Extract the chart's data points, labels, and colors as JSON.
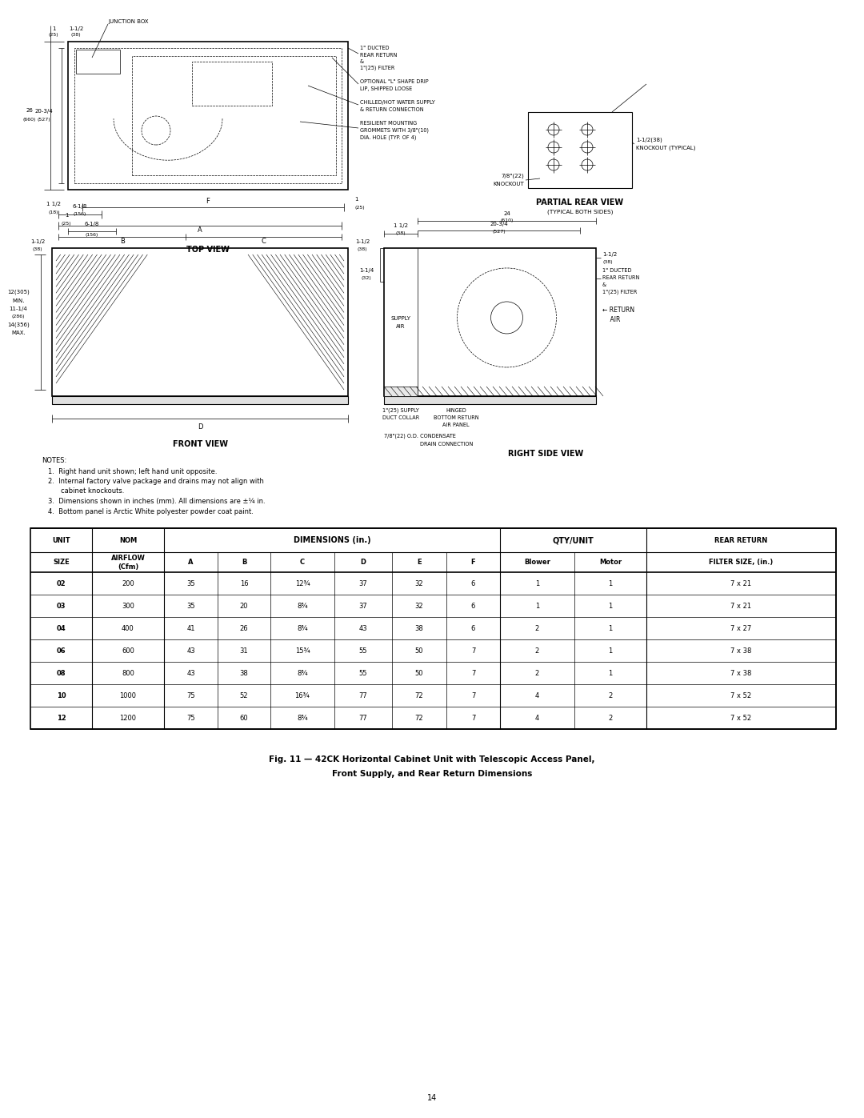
{
  "bg_color": "#ffffff",
  "page_width": 10.8,
  "page_height": 13.97,
  "table_data": {
    "unit_sizes": [
      "02",
      "03",
      "04",
      "06",
      "08",
      "10",
      "12"
    ],
    "nom_airflow": [
      200,
      300,
      400,
      600,
      800,
      1000,
      1200
    ],
    "dim_A": [
      35,
      35,
      41,
      43,
      43,
      75,
      75
    ],
    "dim_B": [
      16,
      20,
      26,
      31,
      38,
      52,
      60
    ],
    "dim_C": [
      "12¾",
      "8¾",
      "8¾",
      "15¾",
      "8¾",
      "16¾",
      "8¾"
    ],
    "dim_D": [
      37,
      37,
      43,
      55,
      55,
      77,
      77
    ],
    "dim_E": [
      32,
      32,
      38,
      50,
      50,
      72,
      72
    ],
    "dim_F": [
      6,
      6,
      6,
      7,
      7,
      7,
      7
    ],
    "blower": [
      1,
      1,
      2,
      2,
      2,
      4,
      4
    ],
    "motor": [
      1,
      1,
      1,
      1,
      1,
      2,
      2
    ],
    "filter_size": [
      "7 x 21",
      "7 x 21",
      "7 x 27",
      "7 x 38",
      "7 x 38",
      "7 x 52",
      "7 x 52"
    ]
  },
  "notes_lines": [
    "NOTES:",
    "1.  Right hand unit shown; left hand unit opposite.",
    "2.  Internal factory valve package and drains may not align with",
    "    cabinet knockouts.",
    "3.  Dimensions shown in inches (mm). All dimensions are ±¼ in.",
    "4.  Bottom panel is Arctic White polyester powder coat paint."
  ],
  "figure_caption_line1": "Fig. 11 — 42CK Horizontal Cabinet Unit with Telescopic Access Panel,",
  "figure_caption_line2": "Front Supply, and Rear Return Dimensions",
  "page_number": "14"
}
